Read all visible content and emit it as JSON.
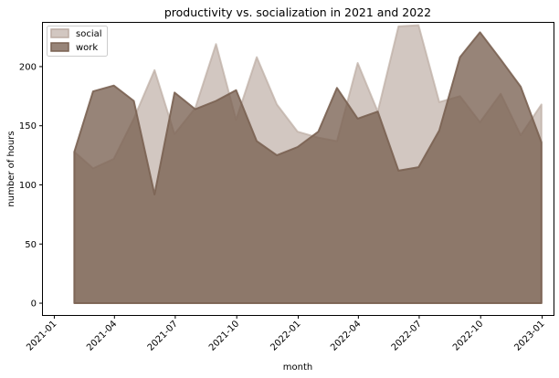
{
  "chart_data": {
    "type": "area",
    "title": "productivity vs. socialization in 2021 and 2022",
    "xlabel": "month",
    "ylabel": "number of hours",
    "ylim": [
      -10,
      237
    ],
    "yticks": [
      0,
      50,
      100,
      150,
      200
    ],
    "ytick_labels": [
      "0",
      "50",
      "100",
      "150",
      "200"
    ],
    "xlim": [
      "2020-12-15",
      "2023-01-18"
    ],
    "xticks": [
      "2021-01-01",
      "2021-04-01",
      "2021-07-01",
      "2021-10-01",
      "2022-01-01",
      "2022-04-01",
      "2022-07-01",
      "2022-10-01",
      "2023-01-01"
    ],
    "xtick_labels": [
      "2021-01",
      "2021-04",
      "2021-07",
      "2021-10",
      "2022-01",
      "2022-04",
      "2022-07",
      "2022-10",
      "2023-01"
    ],
    "x": [
      "2021-01-31",
      "2021-02-28",
      "2021-03-31",
      "2021-04-30",
      "2021-05-31",
      "2021-06-30",
      "2021-07-31",
      "2021-08-31",
      "2021-09-30",
      "2021-10-31",
      "2021-11-30",
      "2021-12-31",
      "2022-01-31",
      "2022-02-28",
      "2022-03-31",
      "2022-04-30",
      "2022-05-31",
      "2022-06-30",
      "2022-07-31",
      "2022-08-31",
      "2022-09-30",
      "2022-10-31",
      "2022-11-30",
      "2022-12-31"
    ],
    "series": [
      {
        "name": "social",
        "color": "#bcaca3",
        "values": [
          128,
          114,
          122,
          156,
          197,
          143,
          165,
          219,
          155,
          208,
          168,
          145,
          140,
          137,
          203,
          162,
          234,
          235,
          170,
          175,
          153,
          177,
          142,
          168
        ]
      },
      {
        "name": "work",
        "color": "#7a6252",
        "values": [
          128,
          179,
          184,
          171,
          92,
          178,
          164,
          171,
          180,
          137,
          125,
          132,
          145,
          182,
          156,
          162,
          112,
          115,
          146,
          208,
          229,
          206,
          183,
          136
        ]
      }
    ],
    "legend_position": "upper left",
    "grid": false
  }
}
